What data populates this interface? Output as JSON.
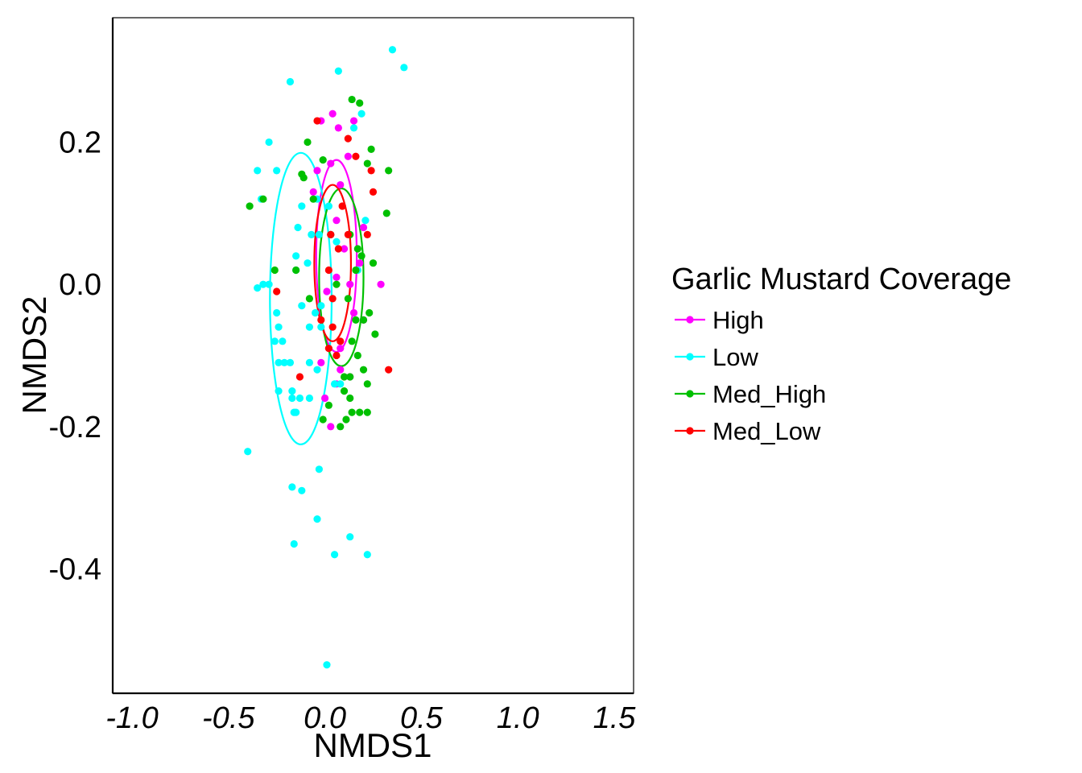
{
  "chart_data": {
    "type": "scatter",
    "title": "",
    "xlabel": "NMDS1",
    "ylabel": "NMDS2",
    "xlim": [
      -1.1,
      1.6
    ],
    "ylim": [
      -0.575,
      0.375
    ],
    "x_ticks": [
      -1.0,
      -0.5,
      0.0,
      0.5,
      1.0,
      1.5
    ],
    "x_tick_labels": [
      "-1.0",
      "-0.5",
      "0.0",
      "0.5",
      "1.0",
      "1.5"
    ],
    "y_ticks": [
      -0.4,
      -0.2,
      0.0,
      0.2
    ],
    "y_tick_labels": [
      "-0.4",
      "-0.2",
      "0.0",
      "0.2"
    ],
    "grid": false,
    "legend": {
      "title": "Garlic Mustard Coverage",
      "position": "right"
    },
    "series": [
      {
        "name": "High",
        "color": "#ff00ff",
        "ellipse": {
          "cx": 0.06,
          "cy": 0.04,
          "rx": 0.105,
          "ry": 0.135
        },
        "points": [
          [
            -0.02,
            0.23
          ],
          [
            0.04,
            0.24
          ],
          [
            0.07,
            0.22
          ],
          [
            0.15,
            0.23
          ],
          [
            0.12,
            0.18
          ],
          [
            0.03,
            0.17
          ],
          [
            -0.06,
            0.13
          ],
          [
            -0.04,
            0.16
          ],
          [
            0.08,
            0.14
          ],
          [
            0.06,
            0.09
          ],
          [
            0.03,
            0.07
          ],
          [
            0.2,
            0.08
          ],
          [
            0.1,
            0.05
          ],
          [
            0.18,
            0.03
          ],
          [
            0.06,
            0.01
          ],
          [
            0.29,
            0.0
          ],
          [
            0.13,
            0.0
          ],
          [
            0.01,
            -0.01
          ],
          [
            0.15,
            -0.04
          ],
          [
            0.2,
            -0.05
          ],
          [
            0.08,
            -0.09
          ],
          [
            -0.02,
            -0.11
          ],
          [
            0.08,
            -0.12
          ],
          [
            0.13,
            -0.13
          ],
          [
            0.0,
            -0.16
          ],
          [
            0.03,
            -0.2
          ],
          [
            0.06,
            -0.14
          ]
        ]
      },
      {
        "name": "Low",
        "color": "#00ffff",
        "ellipse": {
          "cx": -0.125,
          "cy": -0.02,
          "rx": 0.16,
          "ry": 0.205
        },
        "points": [
          [
            0.35,
            0.33
          ],
          [
            0.41,
            0.305
          ],
          [
            0.07,
            0.3
          ],
          [
            -0.18,
            0.285
          ],
          [
            0.19,
            0.24
          ],
          [
            0.15,
            0.22
          ],
          [
            -0.29,
            0.2
          ],
          [
            -0.35,
            0.16
          ],
          [
            -0.25,
            0.16
          ],
          [
            -0.33,
            0.12
          ],
          [
            -0.12,
            0.11
          ],
          [
            -0.04,
            0.12
          ],
          [
            0.02,
            0.11
          ],
          [
            0.21,
            0.09
          ],
          [
            -0.07,
            0.07
          ],
          [
            -0.14,
            0.08
          ],
          [
            -0.03,
            0.07
          ],
          [
            0.06,
            0.06
          ],
          [
            -0.09,
            0.03
          ],
          [
            -0.15,
            0.04
          ],
          [
            0.17,
            0.02
          ],
          [
            -0.32,
            0.0
          ],
          [
            -0.29,
            0.0
          ],
          [
            -0.35,
            -0.005
          ],
          [
            -0.15,
            0.02
          ],
          [
            -0.12,
            -0.03
          ],
          [
            -0.05,
            -0.04
          ],
          [
            -0.02,
            -0.03
          ],
          [
            -0.08,
            -0.06
          ],
          [
            -0.02,
            -0.06
          ],
          [
            -0.25,
            -0.04
          ],
          [
            -0.24,
            -0.06
          ],
          [
            -0.22,
            -0.08
          ],
          [
            -0.26,
            -0.08
          ],
          [
            -0.18,
            -0.11
          ],
          [
            -0.24,
            -0.11
          ],
          [
            -0.21,
            -0.11
          ],
          [
            -0.08,
            -0.11
          ],
          [
            -0.04,
            -0.12
          ],
          [
            0.05,
            -0.14
          ],
          [
            0.08,
            -0.14
          ],
          [
            -0.17,
            -0.15
          ],
          [
            -0.13,
            -0.16
          ],
          [
            -0.24,
            -0.15
          ],
          [
            -0.17,
            -0.16
          ],
          [
            -0.15,
            -0.18
          ],
          [
            -0.08,
            -0.16
          ],
          [
            -0.16,
            -0.18
          ],
          [
            -0.4,
            -0.235
          ],
          [
            -0.03,
            -0.26
          ],
          [
            -0.17,
            -0.285
          ],
          [
            -0.12,
            -0.29
          ],
          [
            -0.04,
            -0.33
          ],
          [
            0.13,
            -0.355
          ],
          [
            -0.16,
            -0.365
          ],
          [
            0.05,
            -0.38
          ],
          [
            0.22,
            -0.38
          ],
          [
            0.01,
            -0.535
          ]
        ]
      },
      {
        "name": "Med_High",
        "color": "#00c000",
        "ellipse": {
          "cx": 0.085,
          "cy": 0.01,
          "rx": 0.115,
          "ry": 0.125
        },
        "points": [
          [
            0.14,
            0.26
          ],
          [
            0.18,
            0.255
          ],
          [
            -0.09,
            0.2
          ],
          [
            0.24,
            0.19
          ],
          [
            -0.01,
            0.175
          ],
          [
            0.22,
            0.17
          ],
          [
            0.33,
            0.16
          ],
          [
            -0.12,
            0.155
          ],
          [
            -0.11,
            0.15
          ],
          [
            -0.39,
            0.11
          ],
          [
            -0.32,
            0.12
          ],
          [
            0.32,
            0.1
          ],
          [
            -0.06,
            0.12
          ],
          [
            0.03,
            0.07
          ],
          [
            0.13,
            0.07
          ],
          [
            0.17,
            0.05
          ],
          [
            0.19,
            0.04
          ],
          [
            0.16,
            0.02
          ],
          [
            0.25,
            0.03
          ],
          [
            -0.15,
            0.02
          ],
          [
            -0.26,
            0.02
          ],
          [
            -0.08,
            -0.02
          ],
          [
            0.06,
            0.0
          ],
          [
            0.12,
            -0.02
          ],
          [
            0.23,
            -0.04
          ],
          [
            0.16,
            -0.05
          ],
          [
            0.2,
            -0.05
          ],
          [
            0.26,
            -0.07
          ],
          [
            0.17,
            -0.1
          ],
          [
            0.2,
            -0.12
          ],
          [
            0.13,
            -0.13
          ],
          [
            0.22,
            -0.14
          ],
          [
            0.1,
            -0.15
          ],
          [
            0.13,
            -0.16
          ],
          [
            0.02,
            -0.17
          ],
          [
            0.18,
            -0.18
          ],
          [
            0.14,
            -0.18
          ],
          [
            0.22,
            -0.18
          ],
          [
            0.11,
            -0.19
          ],
          [
            -0.01,
            -0.19
          ],
          [
            0.08,
            -0.2
          ],
          [
            0.1,
            -0.13
          ],
          [
            0.14,
            -0.08
          ]
        ]
      },
      {
        "name": "Med_Low",
        "color": "#ff0000",
        "ellipse": {
          "cx": 0.04,
          "cy": 0.03,
          "rx": 0.095,
          "ry": 0.11
        },
        "points": [
          [
            -0.04,
            0.23
          ],
          [
            0.16,
            0.18
          ],
          [
            0.12,
            0.205
          ],
          [
            0.24,
            0.16
          ],
          [
            0.25,
            0.13
          ],
          [
            0.22,
            0.07
          ],
          [
            0.03,
            0.07
          ],
          [
            0.09,
            0.11
          ],
          [
            -0.25,
            -0.01
          ],
          [
            0.12,
            0.07
          ],
          [
            0.07,
            0.05
          ],
          [
            0.02,
            0.02
          ],
          [
            0.04,
            -0.02
          ],
          [
            -0.02,
            -0.05
          ],
          [
            0.04,
            -0.06
          ],
          [
            0.08,
            -0.08
          ],
          [
            -0.13,
            -0.13
          ],
          [
            0.33,
            -0.12
          ],
          [
            0.02,
            -0.09
          ],
          [
            0.06,
            -0.1
          ]
        ]
      }
    ]
  }
}
